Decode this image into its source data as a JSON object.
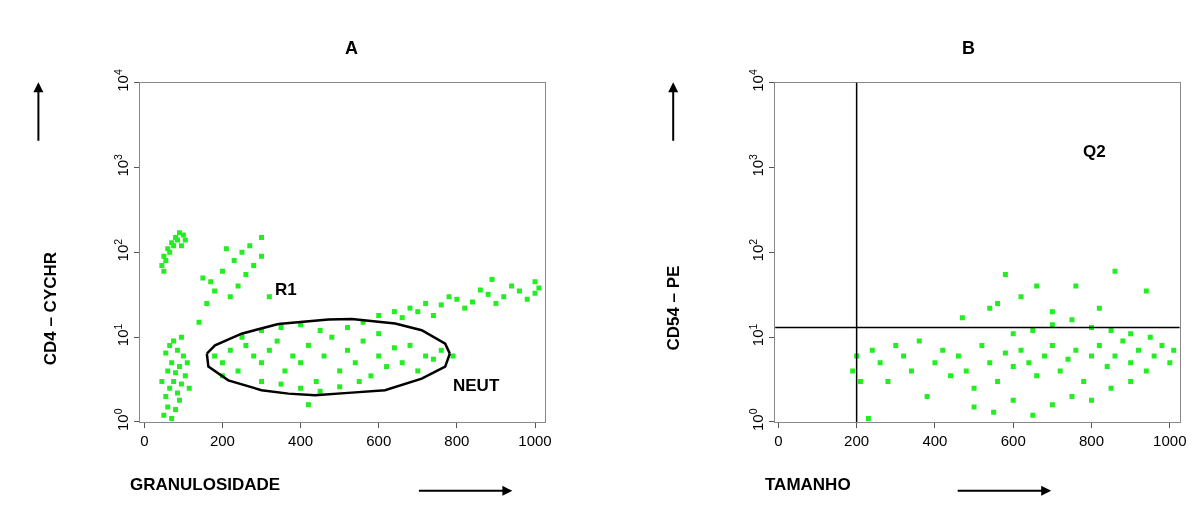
{
  "chart_data": [
    {
      "type": "scatter",
      "title": "A",
      "xlabel": "GRANULOSIDADE",
      "ylabel": "CD4 – CYCHR",
      "xlim": [
        -10,
        1025
      ],
      "ylim": [
        1,
        10000
      ],
      "log": "y",
      "xticks": [
        0,
        200,
        400,
        600,
        800,
        1000
      ],
      "yticks": [
        {
          "value": 1,
          "label": "10$^{0}$"
        },
        {
          "value": 10,
          "label": "10$^{1}$"
        },
        {
          "value": 100,
          "label": "10$^{2}$"
        },
        {
          "value": 1000,
          "label": "10$^{3}$"
        },
        {
          "value": 10000,
          "label": "10$^{4}$"
        }
      ],
      "annotations": [
        "R1",
        "NEUT"
      ],
      "series": [
        {
          "marker": "square",
          "color": "#22ee22",
          "x": [
            50,
            60,
            70,
            80,
            90,
            55,
            65,
            75,
            85,
            95,
            105,
            60,
            70,
            80,
            90,
            100,
            55,
            65,
            75,
            85,
            95,
            110,
            45,
            115,
            45,
            50,
            60,
            70,
            80,
            90,
            100,
            55,
            65,
            75,
            85,
            95,
            105,
            50,
            150,
            170,
            200,
            230,
            250,
            270,
            300,
            180,
            220,
            260,
            240,
            300,
            210,
            160,
            140,
            280,
            320,
            180,
            200,
            220,
            240,
            260,
            280,
            300,
            320,
            340,
            360,
            380,
            400,
            420,
            440,
            460,
            480,
            500,
            520,
            540,
            560,
            580,
            600,
            620,
            640,
            660,
            680,
            700,
            720,
            740,
            760,
            790,
            300,
            350,
            400,
            450,
            500,
            550,
            250,
            300,
            350,
            400,
            450,
            520,
            600,
            420,
            200,
            560,
            600,
            640,
            680,
            720,
            760,
            800,
            840,
            880,
            920,
            960,
            1000,
            1010,
            980,
            940,
            900,
            860,
            820,
            780,
            740,
            700,
            660,
            890,
            1000
          ],
          "values": [
            1.2,
            1.5,
            1.1,
            1.4,
            1.8,
            2,
            2.5,
            3,
            2.2,
            2.8,
            3.5,
            4,
            5,
            3.8,
            4.5,
            6,
            6.5,
            8,
            9,
            7,
            10,
            5,
            3,
            2.5,
            70,
            90,
            110,
            130,
            150,
            170,
            160,
            80,
            100,
            120,
            140,
            120,
            140,
            60,
            50,
            45,
            60,
            80,
            100,
            120,
            150,
            35,
            30,
            55,
            40,
            90,
            110,
            25,
            15,
            70,
            30,
            6,
            5,
            7,
            4,
            8,
            6,
            5,
            7,
            9,
            4,
            6,
            5,
            8,
            3,
            6,
            10,
            4,
            7,
            5,
            9,
            3.5,
            6,
            4.5,
            7.5,
            5,
            8,
            4,
            6,
            5.5,
            7,
            6,
            3,
            2.8,
            2.5,
            2.3,
            2.6,
            3,
            10,
            12,
            13,
            14,
            12,
            13,
            11,
            1.6,
            3.5,
            15,
            18,
            20,
            22,
            25,
            24,
            28,
            26,
            32,
            30,
            35,
            33,
            38,
            28,
            40,
            25,
            36,
            22,
            30,
            18,
            20,
            17,
            48,
            45
          ]
        },
        {
          "type": "line",
          "color": "#000000",
          "x": [
            160,
            181,
            249,
            343,
            471,
            531,
            642,
            710,
            770,
            782
          ],
          "values": [
            6.4,
            8.0,
            11.0,
            14.3,
            16.2,
            16.4,
            14.5,
            12.1,
            8.4,
            6.4
          ]
        },
        {
          "type": "line",
          "color": "#000000",
          "x": [
            160,
            164,
            215,
            300,
            369,
            437,
            531,
            616,
            710,
            770,
            782
          ],
          "values": [
            6.4,
            4.5,
            3.1,
            2.37,
            2.16,
            2.07,
            2.22,
            2.37,
            3.25,
            4.5,
            6.4
          ]
        }
      ]
    },
    {
      "type": "scatter",
      "title": "B",
      "xlabel": "TAMANHO",
      "ylabel": "CD54 – PE",
      "xlim": [
        -8,
        1025
      ],
      "ylim": [
        1,
        10000
      ],
      "log": "y",
      "xticks": [
        0,
        200,
        400,
        600,
        800,
        1000
      ],
      "yticks": [
        {
          "value": 1,
          "label": "10$^{0}$"
        },
        {
          "value": 10,
          "label": "10$^{1}$"
        },
        {
          "value": 100,
          "label": "10$^{2}$"
        },
        {
          "value": 1000,
          "label": "10$^{3}$"
        },
        {
          "value": 10000,
          "label": "10$^{4}$"
        }
      ],
      "annotations": [
        "Q2"
      ],
      "ref_lines": [
        {
          "axis": "x",
          "value": 200,
          "color": "#000000"
        },
        {
          "axis": "y",
          "value": 13,
          "color": "#000000"
        }
      ],
      "series": [
        {
          "marker": "square",
          "color": "#22ee22",
          "x": [
            190,
            200,
            210,
            230,
            240,
            260,
            280,
            300,
            320,
            340,
            360,
            380,
            400,
            420,
            440,
            460,
            480,
            500,
            520,
            540,
            560,
            580,
            600,
            620,
            640,
            660,
            680,
            700,
            720,
            740,
            760,
            780,
            800,
            820,
            840,
            860,
            880,
            900,
            920,
            940,
            960,
            980,
            1000,
            1010,
            500,
            550,
            600,
            650,
            700,
            750,
            800,
            850,
            900,
            600,
            650,
            700,
            750,
            800,
            850,
            900,
            950,
            560,
            620,
            700,
            760,
            860,
            940,
            580,
            660,
            470,
            540,
            820
          ],
          "values": [
            4,
            6,
            3,
            1.1,
            7,
            5,
            3,
            8,
            6,
            4,
            9,
            2,
            5,
            7,
            3.5,
            6,
            4,
            2.5,
            8,
            5,
            3,
            6.5,
            4.5,
            7,
            5,
            3.5,
            6,
            8,
            4,
            5.5,
            7,
            3,
            6,
            8,
            4.5,
            6,
            9,
            5,
            7,
            4,
            6,
            8,
            5,
            7,
            1.5,
            1.3,
            1.8,
            1.2,
            1.6,
            2,
            1.8,
            2.5,
            3,
            11,
            12,
            14,
            16,
            13,
            12,
            11,
            10,
            25,
            30,
            20,
            40,
            60,
            35,
            55,
            40,
            17,
            22,
            22
          ]
        }
      ]
    }
  ]
}
